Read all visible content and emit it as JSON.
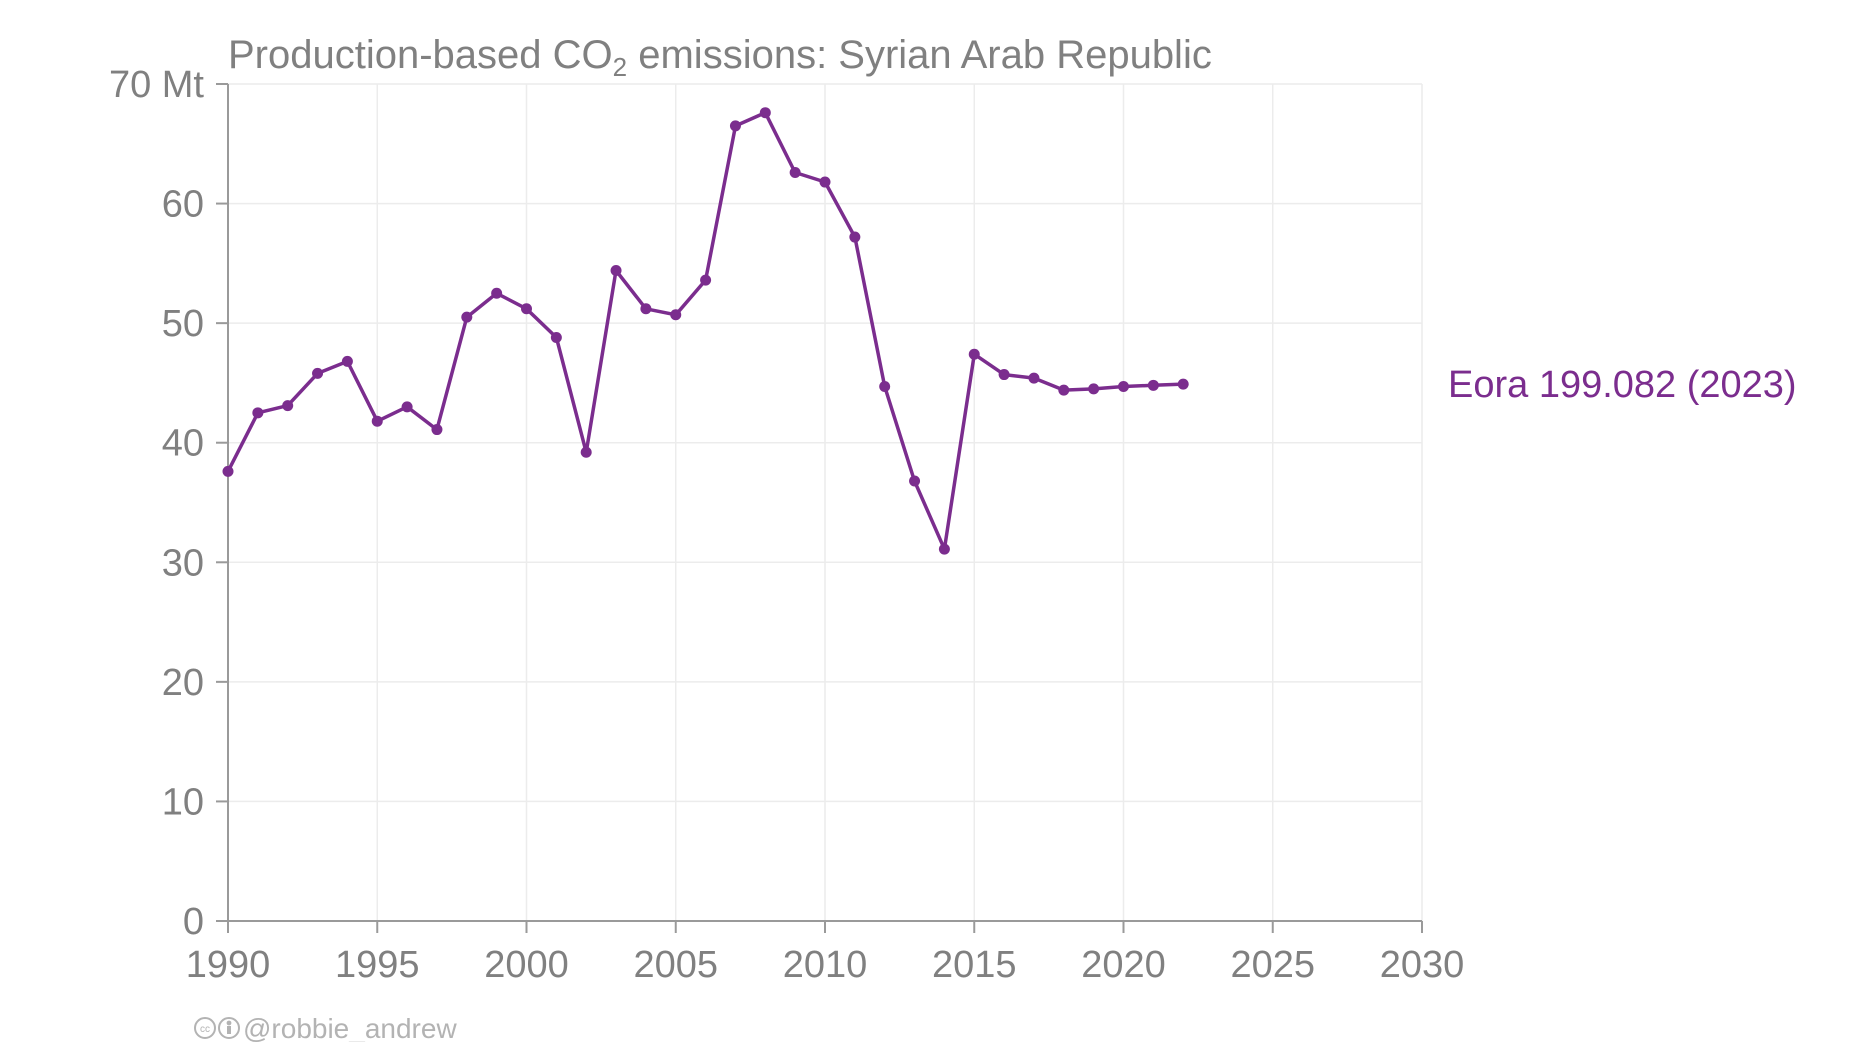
{
  "chart_data": {
    "type": "line",
    "title": {
      "prefix": "Production-based CO",
      "subscript": "2",
      "suffix": " emissions: Syrian Arab Republic"
    },
    "y_unit": "Mt",
    "xlim": [
      1990,
      2030
    ],
    "ylim": [
      0,
      70
    ],
    "x_ticks": [
      1990,
      1995,
      2000,
      2005,
      2010,
      2015,
      2020,
      2025,
      2030
    ],
    "y_ticks": [
      0,
      10,
      20,
      30,
      40,
      50,
      60,
      70
    ],
    "y_tick_labels": [
      "0",
      "10",
      "20",
      "30",
      "40",
      "50",
      "60",
      "70 Mt"
    ],
    "grid": true,
    "series": [
      {
        "name": "Eora 199.082 (2023)",
        "color": "#7b2d8e",
        "x": [
          1990,
          1991,
          1992,
          1993,
          1994,
          1995,
          1996,
          1997,
          1998,
          1999,
          2000,
          2001,
          2002,
          2003,
          2004,
          2005,
          2006,
          2007,
          2008,
          2009,
          2010,
          2011,
          2012,
          2013,
          2014,
          2015,
          2016,
          2017,
          2018,
          2019,
          2020,
          2021,
          2022
        ],
        "y": [
          37.6,
          42.5,
          43.1,
          45.8,
          46.8,
          41.8,
          43.0,
          41.1,
          50.5,
          52.5,
          51.2,
          48.8,
          39.2,
          54.4,
          51.2,
          50.7,
          53.6,
          66.5,
          67.6,
          62.6,
          61.8,
          57.2,
          44.7,
          36.8,
          31.1,
          47.4,
          45.7,
          45.4,
          44.4,
          44.5,
          44.7,
          44.8,
          44.9
        ]
      }
    ],
    "credit": "@robbie_andrew"
  }
}
